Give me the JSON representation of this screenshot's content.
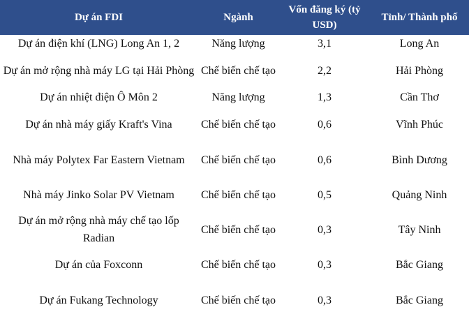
{
  "table": {
    "headers": [
      "Dự án FDI",
      "Ngành",
      "Vốn đăng ký (tỷ USD)",
      "Tỉnh/ Thành phố"
    ],
    "rows": [
      [
        "Dự án điện khí (LNG) Long An 1, 2",
        "Năng lượng",
        "3,1",
        "Long An"
      ],
      [
        "Dự án mở rộng nhà máy LG tại Hải Phòng",
        "Chế biến chế tạo",
        "2,2",
        "Hải Phòng"
      ],
      [
        "Dự án nhiệt điện Ô Môn 2",
        "Năng lượng",
        "1,3",
        "Cần Thơ"
      ],
      [
        "Dự án nhà máy giấy Kraft's Vina",
        "Chế biến chế tạo",
        "0,6",
        "Vĩnh Phúc"
      ],
      [
        "Nhà máy Polytex Far Eastern Vietnam",
        "Chế biến chế tạo",
        "0,6",
        "Bình Dương"
      ],
      [
        "Nhà máy Jinko Solar PV Vietnam",
        "Chế biến chế tạo",
        "0,5",
        "Quảng Ninh"
      ],
      [
        "Dự án mở rộng nhà máy chế tạo lốp Radian",
        "Chế biến chế tạo",
        "0,3",
        "Tây Ninh"
      ],
      [
        "Dự án của Foxconn",
        "Chế biến chế tạo",
        "0,3",
        "Bắc Giang"
      ],
      [
        "Dự án Fukang Technology",
        "Chế biến chế tạo",
        "0,3",
        "Bắc Giang"
      ]
    ]
  }
}
